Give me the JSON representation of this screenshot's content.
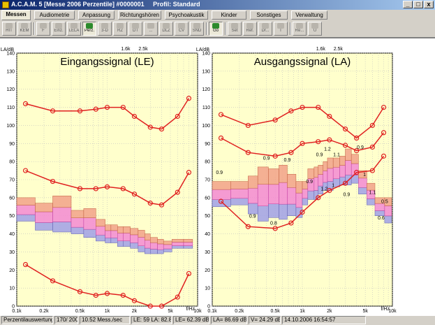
{
  "window": {
    "title": "A.C.A.M. 5 [Messe 2006 Perzentile] #0000001",
    "profile": "Profil: Standard",
    "min_label": "_",
    "max_label": "□",
    "close_label": "x"
  },
  "tabs": [
    {
      "label": "Messen",
      "active": true
    },
    {
      "label": "Audiometrie"
    },
    {
      "label": "Anpassung"
    },
    {
      "label": "Richtungshören"
    },
    {
      "label": "Psychoakustik"
    },
    {
      "label": "Kinder"
    },
    {
      "label": "Sonstiges"
    },
    {
      "label": "Verwaltung"
    }
  ],
  "toolbar": [
    {
      "label": "HIT"
    },
    {
      "label": "KEM"
    },
    {
      "sep": true
    },
    {
      "label": "F"
    },
    {
      "label": "Einz."
    },
    {
      "label": "LELA"
    },
    {
      "label": "Perz.",
      "active": true
    },
    {
      "label": "3-D"
    },
    {
      "label": "RZ"
    },
    {
      "label": "DT"
    },
    {
      "label": "..."
    },
    {
      "label": "DLZ"
    },
    {
      "label": "CV"
    },
    {
      "label": "SND"
    },
    {
      "sep": true
    },
    {
      "label": "Go",
      "active": true
    },
    {
      "sep": true
    },
    {
      "label": "Set"
    },
    {
      "label": "Ref."
    },
    {
      "label": "Dr..."
    },
    {
      "label": "T"
    },
    {
      "sep": true
    },
    {
      "label": "Re..."
    },
    {
      "label": "U"
    }
  ],
  "colors": {
    "plot_bg": "#ffffcc",
    "grid": "#c0c0c0",
    "curve": "#e02020",
    "box_upper": "#f2a288",
    "box_mid": "#f38ad2",
    "box_lower": "#a0a0e6"
  },
  "chart_data": [
    {
      "type": "line",
      "title": "Eingangssignal (LE)",
      "ylabel": "LA/dB",
      "xlabel": "f/Hz",
      "ylim": [
        0,
        140
      ],
      "xlim": [
        0.1,
        10
      ],
      "x_scale": "log",
      "yticks": [
        0,
        10,
        20,
        30,
        40,
        50,
        60,
        70,
        80,
        90,
        100,
        110,
        120,
        130,
        140
      ],
      "xticks": [
        {
          "v": 0.1,
          "l": "0.1k"
        },
        {
          "v": 0.2,
          "l": "0.2k"
        },
        {
          "v": 0.5,
          "l": "0.5k"
        },
        {
          "v": 1,
          "l": "1k"
        },
        {
          "v": 2,
          "l": "2k"
        },
        {
          "v": 5,
          "l": "5k"
        },
        {
          "v": 10,
          "l": "10k"
        }
      ],
      "top_markers": [
        {
          "v": 1.6,
          "l": "1.6k"
        },
        {
          "v": 2.5,
          "l": "2.5k"
        }
      ],
      "series": [
        {
          "x": [
            0.125,
            0.25,
            0.5,
            0.75,
            1,
            1.5,
            2,
            3,
            4,
            6,
            8
          ],
          "values": [
            112,
            108,
            108,
            109,
            110,
            110,
            105,
            99,
            98,
            105,
            115
          ]
        },
        {
          "x": [
            0.125,
            0.25,
            0.5,
            0.75,
            1,
            1.5,
            2,
            3,
            4,
            6,
            8
          ],
          "values": [
            75,
            69,
            65,
            65,
            66,
            65,
            62,
            57,
            56,
            63,
            74
          ]
        },
        {
          "x": [
            0.125,
            0.25,
            0.5,
            0.75,
            1,
            1.5,
            2,
            3,
            4,
            6,
            8
          ],
          "values": [
            23,
            14,
            8,
            6,
            7,
            6,
            3,
            0,
            0,
            5,
            18
          ]
        }
      ],
      "boxes": [
        [
          0.1,
          0.16,
          47,
          60
        ],
        [
          0.16,
          0.25,
          42,
          57
        ],
        [
          0.25,
          0.4,
          41,
          61
        ],
        [
          0.4,
          0.55,
          40,
          53
        ],
        [
          0.55,
          0.75,
          38,
          54
        ],
        [
          0.75,
          0.95,
          36,
          48
        ],
        [
          0.95,
          1.1,
          35,
          45
        ],
        [
          1.1,
          1.3,
          35,
          45
        ],
        [
          1.3,
          1.5,
          33,
          44
        ],
        [
          1.5,
          1.8,
          33,
          44
        ],
        [
          1.8,
          2.2,
          32,
          43
        ],
        [
          2.2,
          2.6,
          30,
          42
        ],
        [
          2.6,
          3,
          29,
          40
        ],
        [
          3,
          3.6,
          29,
          38
        ],
        [
          3.6,
          4.2,
          29,
          37
        ],
        [
          4.2,
          5.2,
          30,
          36
        ],
        [
          5.2,
          7,
          32,
          37
        ],
        [
          7,
          8.8,
          32,
          37
        ]
      ],
      "labels": []
    },
    {
      "type": "line",
      "title": "Ausgangssignal (LA)",
      "ylabel": "LA/dB",
      "xlabel": "f/Hz",
      "ylim": [
        0,
        140
      ],
      "xlim": [
        0.1,
        10
      ],
      "x_scale": "log",
      "yticks": [
        0,
        10,
        20,
        30,
        40,
        50,
        60,
        70,
        80,
        90,
        100,
        110,
        120,
        130,
        140
      ],
      "xticks": [
        {
          "v": 0.1,
          "l": "0.1k"
        },
        {
          "v": 0.2,
          "l": "0.2k"
        },
        {
          "v": 0.5,
          "l": "0.5k"
        },
        {
          "v": 1,
          "l": "1k"
        },
        {
          "v": 2,
          "l": "2k"
        },
        {
          "v": 5,
          "l": "5k"
        },
        {
          "v": 10,
          "l": "10k"
        }
      ],
      "top_markers": [
        {
          "v": 1.6,
          "l": "1.6k"
        },
        {
          "v": 2.5,
          "l": "2.5k"
        }
      ],
      "series": [
        {
          "x": [
            0.125,
            0.25,
            0.5,
            0.75,
            1,
            1.5,
            2,
            3,
            4,
            6,
            8
          ],
          "values": [
            106,
            100,
            103,
            108,
            110,
            110,
            105,
            98,
            93,
            100,
            110
          ]
        },
        {
          "x": [
            0.125,
            0.25,
            0.5,
            0.75,
            1,
            1.5,
            2,
            3,
            4,
            6,
            8
          ],
          "values": [
            93,
            85,
            83,
            85,
            90,
            91,
            92,
            89,
            86,
            88,
            96
          ]
        },
        {
          "x": [
            0.125,
            0.25,
            0.5,
            0.75,
            1,
            1.5,
            2,
            3,
            4,
            6,
            8
          ],
          "values": [
            58,
            44,
            43,
            46,
            52,
            60,
            64,
            68,
            74,
            75,
            83
          ]
        }
      ],
      "boxes": [
        [
          0.1,
          0.16,
          55,
          69
        ],
        [
          0.16,
          0.25,
          56,
          69
        ],
        [
          0.25,
          0.32,
          51,
          72
        ],
        [
          0.32,
          0.42,
          47,
          77
        ],
        [
          0.42,
          0.55,
          49,
          76
        ],
        [
          0.55,
          0.68,
          48,
          78
        ],
        [
          0.68,
          0.85,
          50,
          73
        ],
        [
          0.85,
          1,
          49,
          69
        ],
        [
          1,
          1.15,
          56,
          69
        ],
        [
          1.15,
          1.35,
          59,
          76
        ],
        [
          1.35,
          1.5,
          59,
          77
        ],
        [
          1.5,
          1.7,
          62,
          78
        ],
        [
          1.7,
          1.9,
          64,
          80
        ],
        [
          1.9,
          2.2,
          64,
          82
        ],
        [
          2.2,
          2.6,
          66,
          82
        ],
        [
          2.6,
          3,
          67,
          83
        ],
        [
          3,
          3.5,
          67,
          87
        ],
        [
          3.5,
          4.2,
          68,
          84
        ],
        [
          4.2,
          5.2,
          62,
          75
        ],
        [
          5.2,
          6.4,
          56,
          68
        ],
        [
          6.4,
          8.2,
          50,
          60
        ],
        [
          8.2,
          9.8,
          46,
          60
        ]
      ],
      "labels": [
        {
          "x": 0.12,
          "y": 73,
          "t": "0.9"
        },
        {
          "x": 0.4,
          "y": 81,
          "t": "0.9"
        },
        {
          "x": 0.68,
          "y": 80,
          "t": "0.9"
        },
        {
          "x": 1.55,
          "y": 83,
          "t": "0.9"
        },
        {
          "x": 1.9,
          "y": 86,
          "t": "1.2"
        },
        {
          "x": 2.4,
          "y": 83,
          "t": "1.1"
        },
        {
          "x": 4.4,
          "y": 87,
          "t": "0.9"
        },
        {
          "x": 1.2,
          "y": 68,
          "t": "0.9"
        },
        {
          "x": 1.75,
          "y": 64,
          "t": "1.2"
        },
        {
          "x": 2.2,
          "y": 66,
          "t": "1"
        },
        {
          "x": 3.1,
          "y": 61,
          "t": "0.9"
        },
        {
          "x": 4.9,
          "y": 72,
          "t": "1"
        },
        {
          "x": 6,
          "y": 62,
          "t": "1.1"
        },
        {
          "x": 8.2,
          "y": 57,
          "t": "0.5"
        },
        {
          "x": 7.5,
          "y": 48,
          "t": "0.6"
        },
        {
          "x": 0.28,
          "y": 49,
          "t": "0.9"
        },
        {
          "x": 0.48,
          "y": 45,
          "t": "0.8"
        }
      ]
    }
  ],
  "status": [
    "Perzentilauswertung",
    "170/ 200",
    "10.52 Mess./sec",
    "LE: 59  LA: 82.8",
    "LE= 62.39 dB",
    "LA= 86.69 dB",
    "V= 24.29 dB",
    "14.10.2006 16:54:57"
  ]
}
